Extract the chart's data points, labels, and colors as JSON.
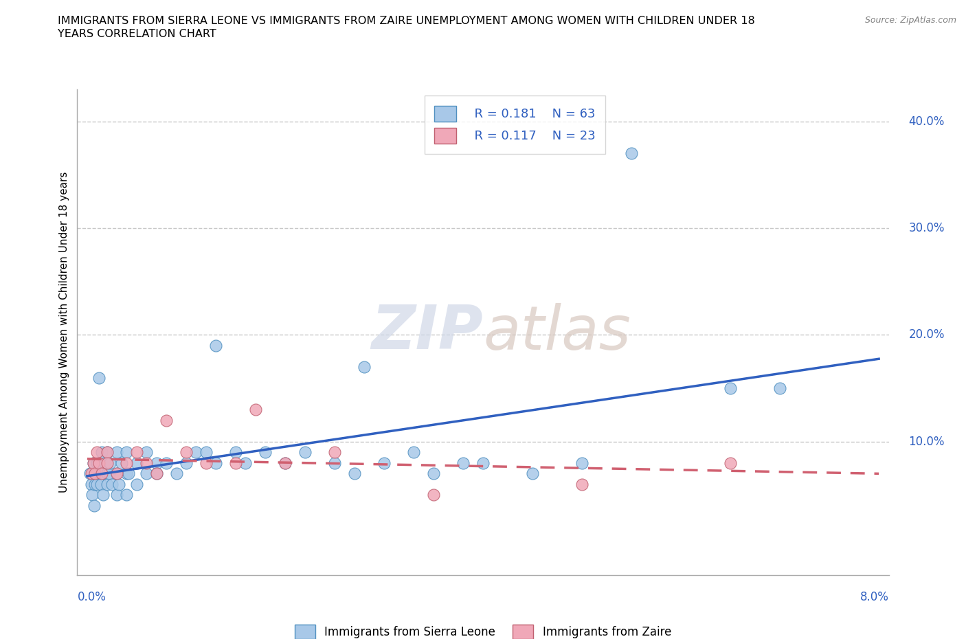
{
  "title_line1": "IMMIGRANTS FROM SIERRA LEONE VS IMMIGRANTS FROM ZAIRE UNEMPLOYMENT AMONG WOMEN WITH CHILDREN UNDER 18",
  "title_line2": "YEARS CORRELATION CHART",
  "source": "Source: ZipAtlas.com",
  "ylabel": "Unemployment Among Women with Children Under 18 years",
  "xlim": [
    0.0,
    0.08
  ],
  "ylim": [
    -0.025,
    0.43
  ],
  "grid_color": "#c8c8c8",
  "watermark_zip": "ZIP",
  "watermark_atlas": "atlas",
  "legend_R1": "R = 0.181",
  "legend_N1": "N = 63",
  "legend_R2": "R = 0.117",
  "legend_N2": "N = 23",
  "sierra_leone_color": "#a8c8e8",
  "sierra_leone_edge": "#5090c0",
  "zaire_color": "#f0a8b8",
  "zaire_edge": "#c06070",
  "trend_sl_color": "#3060c0",
  "trend_z_color": "#d06070",
  "sl_x": [
    0.0003,
    0.0004,
    0.0005,
    0.0006,
    0.0007,
    0.0008,
    0.0009,
    0.001,
    0.001,
    0.001,
    0.0012,
    0.0013,
    0.0014,
    0.0015,
    0.0016,
    0.0017,
    0.0018,
    0.002,
    0.002,
    0.002,
    0.0022,
    0.0023,
    0.0025,
    0.003,
    0.003,
    0.003,
    0.0032,
    0.0035,
    0.004,
    0.004,
    0.004,
    0.0042,
    0.005,
    0.005,
    0.006,
    0.006,
    0.007,
    0.007,
    0.008,
    0.009,
    0.01,
    0.011,
    0.012,
    0.013,
    0.015,
    0.016,
    0.018,
    0.02,
    0.022,
    0.025,
    0.027,
    0.03,
    0.033,
    0.035,
    0.038,
    0.04,
    0.045,
    0.05,
    0.065,
    0.07,
    0.013,
    0.028,
    0.055
  ],
  "sl_y": [
    0.07,
    0.06,
    0.05,
    0.08,
    0.04,
    0.06,
    0.07,
    0.08,
    0.07,
    0.06,
    0.16,
    0.07,
    0.06,
    0.09,
    0.05,
    0.07,
    0.08,
    0.09,
    0.07,
    0.06,
    0.07,
    0.08,
    0.06,
    0.09,
    0.07,
    0.05,
    0.06,
    0.08,
    0.09,
    0.07,
    0.05,
    0.07,
    0.08,
    0.06,
    0.09,
    0.07,
    0.08,
    0.07,
    0.08,
    0.07,
    0.08,
    0.09,
    0.09,
    0.08,
    0.09,
    0.08,
    0.09,
    0.08,
    0.09,
    0.08,
    0.07,
    0.08,
    0.09,
    0.07,
    0.08,
    0.08,
    0.07,
    0.08,
    0.15,
    0.15,
    0.19,
    0.17,
    0.37
  ],
  "z_x": [
    0.0004,
    0.0006,
    0.0008,
    0.001,
    0.0012,
    0.0015,
    0.002,
    0.002,
    0.003,
    0.004,
    0.005,
    0.006,
    0.007,
    0.008,
    0.01,
    0.012,
    0.015,
    0.017,
    0.02,
    0.025,
    0.035,
    0.05,
    0.065
  ],
  "z_y": [
    0.07,
    0.08,
    0.07,
    0.09,
    0.08,
    0.07,
    0.09,
    0.08,
    0.07,
    0.08,
    0.09,
    0.08,
    0.07,
    0.12,
    0.09,
    0.08,
    0.08,
    0.13,
    0.08,
    0.09,
    0.05,
    0.06,
    0.08
  ]
}
